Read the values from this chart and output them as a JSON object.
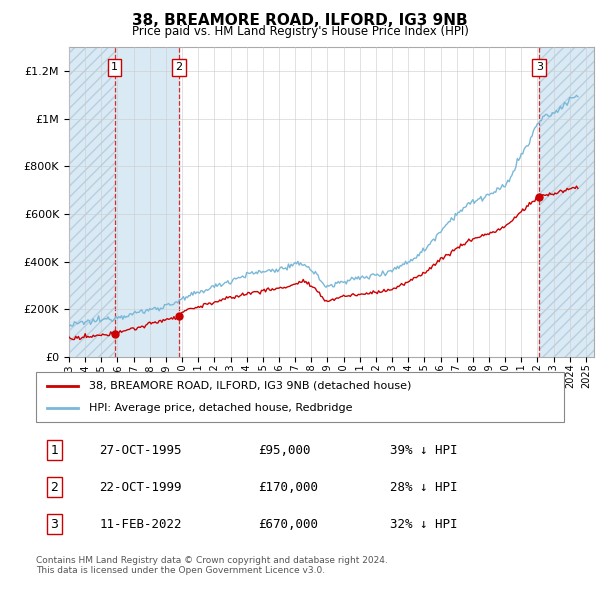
{
  "title": "38, BREAMORE ROAD, ILFORD, IG3 9NB",
  "subtitle": "Price paid vs. HM Land Registry's House Price Index (HPI)",
  "ylabel_ticks": [
    "£0",
    "£200K",
    "£400K",
    "£600K",
    "£800K",
    "£1M",
    "£1.2M"
  ],
  "ylim": [
    0,
    1300000
  ],
  "xlim_start": 1993,
  "xlim_end": 2025.5,
  "sale_dates": [
    1995.82,
    1999.81,
    2022.11
  ],
  "sale_prices": [
    95000,
    170000,
    670000
  ],
  "sale_labels": [
    "1",
    "2",
    "3"
  ],
  "legend_line1": "38, BREAMORE ROAD, ILFORD, IG3 9NB (detached house)",
  "legend_line2": "HPI: Average price, detached house, Redbridge",
  "table_data": [
    [
      "1",
      "27-OCT-1995",
      "£95,000",
      "39% ↓ HPI"
    ],
    [
      "2",
      "22-OCT-1999",
      "£170,000",
      "28% ↓ HPI"
    ],
    [
      "3",
      "11-FEB-2022",
      "£670,000",
      "32% ↓ HPI"
    ]
  ],
  "footnote": "Contains HM Land Registry data © Crown copyright and database right 2024.\nThis data is licensed under the Open Government Licence v3.0.",
  "hpi_color": "#7ab8d8",
  "sale_color": "#cc0000",
  "shade_color": "#daeaf5",
  "grid_color": "#cccccc",
  "hpi_key_years": [
    1993,
    1994,
    1995,
    1996,
    1997,
    1998,
    1999,
    2000,
    2001,
    2002,
    2003,
    2004,
    2005,
    2006,
    2007,
    2007.5,
    2008,
    2008.5,
    2009,
    2009.5,
    2010,
    2011,
    2012,
    2013,
    2014,
    2015,
    2016,
    2017,
    2018,
    2019,
    2020,
    2021,
    2021.5,
    2022,
    2022.5,
    2023,
    2023.5,
    2024,
    2024.5
  ],
  "hpi_key_values": [
    130000,
    145000,
    155000,
    168000,
    182000,
    198000,
    215000,
    240000,
    270000,
    295000,
    320000,
    345000,
    358000,
    368000,
    385000,
    392000,
    365000,
    330000,
    295000,
    305000,
    320000,
    330000,
    345000,
    365000,
    400000,
    450000,
    530000,
    600000,
    650000,
    680000,
    720000,
    850000,
    900000,
    980000,
    1010000,
    1020000,
    1050000,
    1080000,
    1100000
  ],
  "prop_key_years": [
    1993,
    1994,
    1995,
    1995.82,
    1996,
    1997,
    1998,
    1999,
    1999.81,
    2000,
    2001,
    2002,
    2003,
    2004,
    2005,
    2006,
    2007,
    2007.5,
    2008,
    2008.5,
    2009,
    2009.5,
    2010,
    2011,
    2012,
    2013,
    2014,
    2015,
    2016,
    2017,
    2018,
    2019,
    2020,
    2021,
    2021.5,
    2022.11,
    2022.5,
    2023,
    2023.5,
    2024,
    2024.5
  ],
  "prop_key_values": [
    75000,
    82000,
    90000,
    95000,
    105000,
    118000,
    138000,
    158000,
    170000,
    188000,
    210000,
    230000,
    248000,
    265000,
    278000,
    288000,
    305000,
    318000,
    295000,
    265000,
    235000,
    245000,
    255000,
    262000,
    272000,
    285000,
    315000,
    355000,
    408000,
    455000,
    495000,
    518000,
    548000,
    610000,
    640000,
    670000,
    680000,
    685000,
    695000,
    705000,
    710000
  ]
}
